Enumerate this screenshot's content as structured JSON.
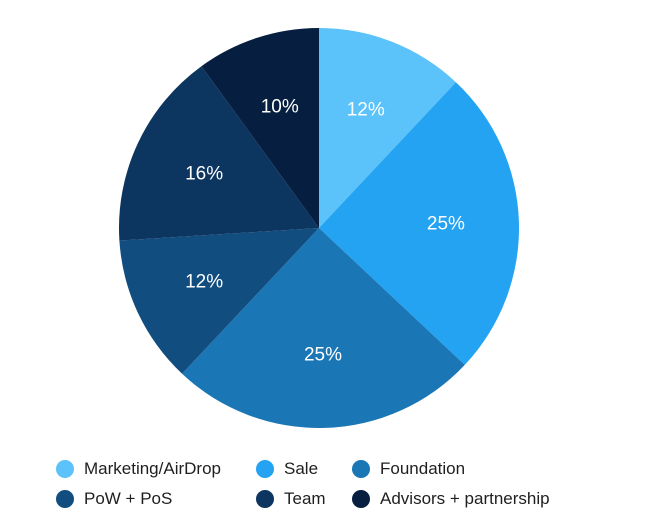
{
  "chart_data": {
    "type": "pie",
    "series": [
      {
        "label": "Marketing/AirDrop",
        "value": 12,
        "display": "12%",
        "color": "#5bc2fa"
      },
      {
        "label": "Sale",
        "value": 25,
        "display": "25%",
        "color": "#24a3f3"
      },
      {
        "label": "Foundation",
        "value": 25,
        "display": "25%",
        "color": "#1a76b5"
      },
      {
        "label": "PoW + PoS",
        "value": 12,
        "display": "12%",
        "color": "#114d7f"
      },
      {
        "label": "Team",
        "value": 16,
        "display": "16%",
        "color": "#0c3560"
      },
      {
        "label": "Advisors + partnership",
        "value": 10,
        "display": "10%",
        "color": "#061e40"
      }
    ],
    "legend_position": "bottom",
    "start": "top, clockwise"
  }
}
